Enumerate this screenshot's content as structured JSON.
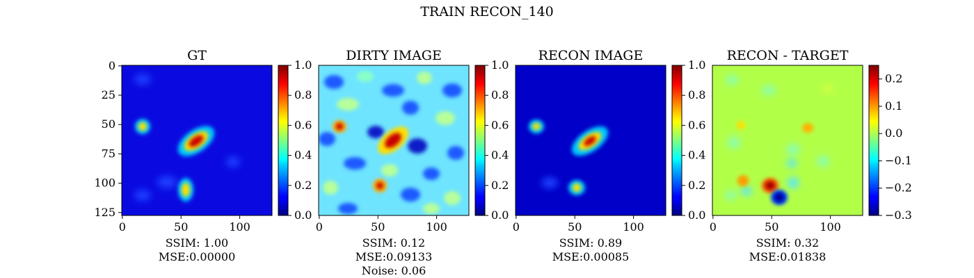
{
  "figure": {
    "suptitle": "TRAIN RECON_140"
  },
  "chart_data": [
    {
      "type": "heatmap",
      "title": "GT",
      "x_ticks": [
        0,
        50,
        100
      ],
      "y_ticks": [
        0,
        25,
        50,
        75,
        100,
        125
      ],
      "image_size": 128,
      "colormap": "jet",
      "colorbar": {
        "min": 0.0,
        "max": 1.0,
        "ticks": [
          "0.0",
          "0.2",
          "0.4",
          "0.6",
          "0.8",
          "1.0"
        ],
        "tick_values": [
          0,
          0.2,
          0.4,
          0.6,
          0.8,
          1.0
        ]
      },
      "caption": [
        "SSIM: 1.00",
        "MSE:0.00000"
      ],
      "show_y_ticks": true
    },
    {
      "type": "heatmap",
      "title": "DIRTY IMAGE",
      "x_ticks": [
        0,
        50,
        100
      ],
      "image_size": 128,
      "colormap": "jet",
      "colorbar": {
        "min": 0.0,
        "max": 1.0,
        "ticks": [
          "0.0",
          "0.2",
          "0.4",
          "0.6",
          "0.8",
          "1.0"
        ],
        "tick_values": [
          0,
          0.2,
          0.4,
          0.6,
          0.8,
          1.0
        ]
      },
      "caption": [
        "SSIM: 0.12",
        "MSE:0.09133",
        "Noise: 0.06"
      ],
      "show_y_ticks": false
    },
    {
      "type": "heatmap",
      "title": "RECON IMAGE",
      "x_ticks": [
        0,
        50,
        100
      ],
      "image_size": 128,
      "colormap": "jet",
      "colorbar": {
        "min": 0.0,
        "max": 1.0,
        "ticks": [
          "0.0",
          "0.2",
          "0.4",
          "0.6",
          "0.8",
          "1.0"
        ],
        "tick_values": [
          0,
          0.2,
          0.4,
          0.6,
          0.8,
          1.0
        ]
      },
      "caption": [
        "SSIM: 0.89",
        "MSE:0.00085"
      ],
      "show_y_ticks": false
    },
    {
      "type": "heatmap",
      "title": "RECON - TARGET",
      "x_ticks": [
        0,
        50,
        100
      ],
      "image_size": 128,
      "colormap": "jet",
      "colorbar": {
        "min": -0.3,
        "max": 0.25,
        "ticks": [
          "0.2",
          "0.1",
          "0.0",
          "−0.1",
          "−0.2",
          "−0.3"
        ],
        "tick_values": [
          0.2,
          0.1,
          0.0,
          -0.1,
          -0.2,
          -0.3
        ]
      },
      "caption": [
        "SSIM: 0.32",
        "MSE:0.01838"
      ],
      "show_y_ticks": false
    }
  ]
}
